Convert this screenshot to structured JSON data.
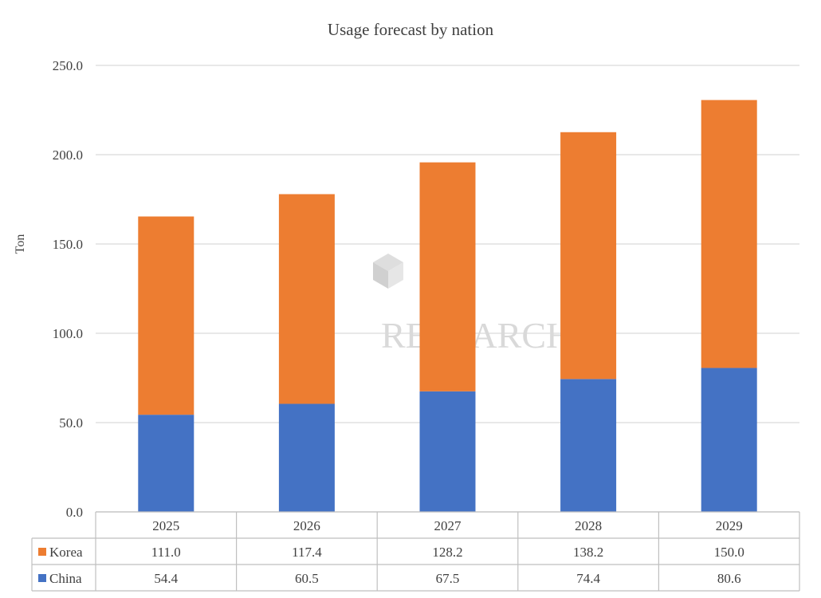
{
  "chart_data": {
    "type": "bar",
    "stacked": true,
    "title": "Usage forecast by nation",
    "ylabel": "Ton",
    "ylim": [
      0,
      250
    ],
    "yticks": [
      "0.0",
      "50.0",
      "100.0",
      "150.0",
      "200.0",
      "250.0"
    ],
    "categories": [
      "2025",
      "2026",
      "2027",
      "2028",
      "2029"
    ],
    "series": [
      {
        "name": "China",
        "color": "#4472C4",
        "values": [
          54.4,
          60.5,
          67.5,
          74.4,
          80.6
        ],
        "labels": [
          "54.4",
          "60.5",
          "67.5",
          "74.4",
          "80.6"
        ]
      },
      {
        "name": "Korea",
        "color": "#ED7D31",
        "values": [
          111.0,
          117.4,
          128.2,
          138.2,
          150.0
        ],
        "labels": [
          "111.0",
          "117.4",
          "128.2",
          "138.2",
          "150.0"
        ]
      }
    ],
    "data_table": true,
    "grid": true,
    "watermark": "RESEARCH"
  }
}
